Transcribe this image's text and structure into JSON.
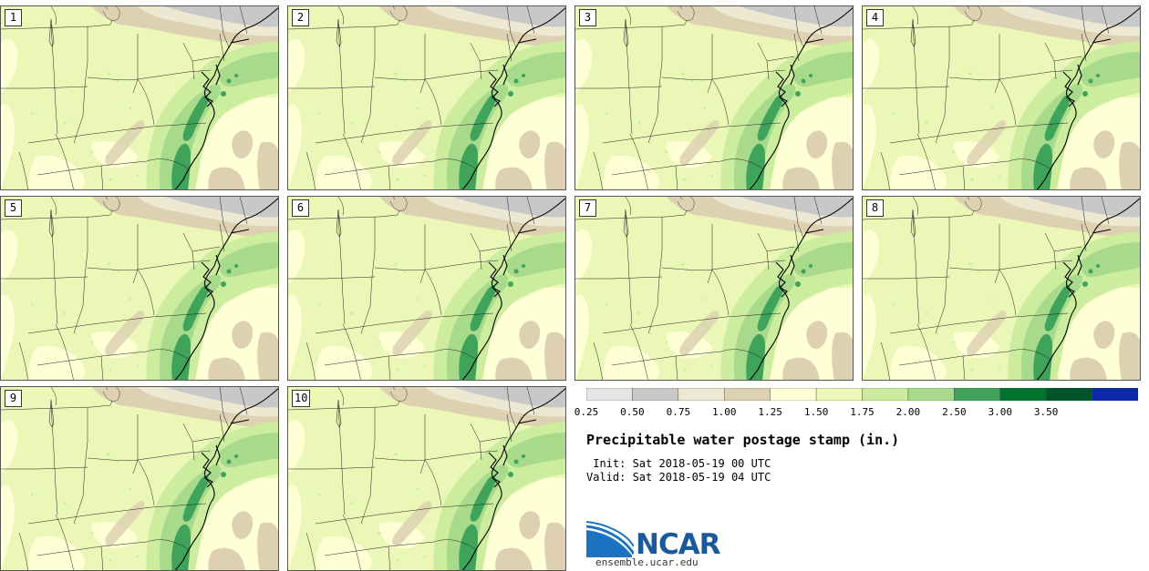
{
  "panels": [
    {
      "label": "1"
    },
    {
      "label": "2"
    },
    {
      "label": "3"
    },
    {
      "label": "4"
    },
    {
      "label": "5"
    },
    {
      "label": "6"
    },
    {
      "label": "7"
    },
    {
      "label": "8"
    },
    {
      "label": "9"
    },
    {
      "label": "10"
    }
  ],
  "colorbar": {
    "boundaries": [
      "0.25",
      "0.50",
      "0.75",
      "1.00",
      "1.25",
      "1.50",
      "1.75",
      "2.00",
      "2.50",
      "3.00",
      "3.50"
    ],
    "colors": [
      "#e6e6e6",
      "#c8c8c8",
      "#ece8d2",
      "#ddd1b2",
      "#ffffd6",
      "#eaf7b6",
      "#ccec9e",
      "#a8da8c",
      "#3fa35a",
      "#00742e",
      "#02552a",
      "#0a28a8"
    ]
  },
  "title": "Precipitable water postage stamp (in.)",
  "init": " Init: Sat 2018-05-19 00 UTC",
  "valid": "Valid: Sat 2018-05-19 04 UTC",
  "logo": {
    "name": "NCAR",
    "url": "ensemble.ucar.edu"
  }
}
